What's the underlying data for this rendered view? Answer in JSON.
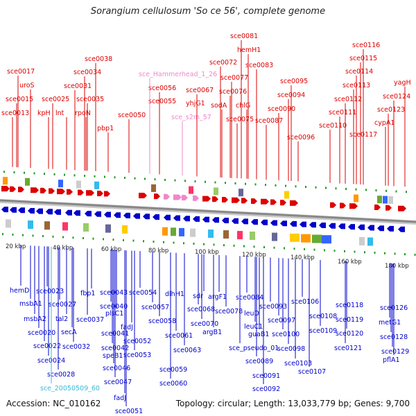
{
  "title": "Sorangium cellulosum 'So ce 56', complete genome",
  "footer": {
    "accession": "Accession: NC_010162",
    "summary": "Topology: circular; Length: 13,033,779 bp; Genes: 9,700"
  },
  "colors": {
    "top_gene": "#dd0000",
    "top_rna": "#ee88cc",
    "bottom_gene": "#0000cc",
    "bottom_rna": "#33bbdd",
    "backbone": "#888888",
    "tick": "#229922"
  },
  "scale_labels": [
    "20 kbp",
    "40 kbp",
    "60 kbp",
    "80 kbp",
    "100 kbp",
    "120 kbp",
    "140 kbp",
    "160 kbp",
    "180 kbp"
  ],
  "top_labels": [
    "sce0013",
    "sce0015",
    "uroS",
    "sce0017",
    "kpH",
    "lnt",
    "sce0025",
    "sce0031",
    "rpoN",
    "sce0034",
    "sce0035",
    "sce0038",
    "pbp1",
    "sce0050",
    "sce0055",
    "sce0056",
    "sce_Hammerhead_1_26",
    "sce_s2m_57",
    "yhjG1",
    "sce0067",
    "sodA",
    "sce0072",
    "sce0075",
    "sce0076",
    "sce0077",
    "hemH1",
    "sce0081",
    "chlG",
    "sce0083",
    "sce0087",
    "sce0090",
    "sce0094",
    "sce0095",
    "sce0096",
    "sce0110",
    "sce0111",
    "sce0112",
    "sce0113",
    "sce0114",
    "sce0115",
    "sce0116",
    "sce0117",
    "cypA1",
    "sce0123",
    "sce0124",
    "yagH"
  ],
  "bottom_labels": [
    "hemD",
    "msbA1",
    "msbA2",
    "sce0020",
    "sce0022",
    "sce0023",
    "sce0024",
    "sce0027",
    "tal2",
    "secA",
    "sce0028",
    "sce0032",
    "sce_20050509_60",
    "fbp1",
    "sce0037",
    "sce0040",
    "sce0041",
    "sce0042",
    "sce0043",
    "plsC1",
    "speB1",
    "fadJ",
    "sce0046",
    "sce0047",
    "fadJ",
    "sce0051",
    "sce0052",
    "sce0053",
    "sce0054",
    "sce0057",
    "sce0058",
    "dlhH1",
    "sce0059",
    "sce0060",
    "sce0061",
    "sce0063",
    "sdr",
    "sce0068",
    "argF1",
    "sce0070",
    "argB1",
    "sce0078",
    "sce0084",
    "leuD",
    "leuC1",
    "sce_pseudo_01",
    "guaB1",
    "sce0089",
    "sce0091",
    "sce0092",
    "sce0093",
    "sce0097",
    "sce0100",
    "sce0098",
    "sce0103",
    "sce0106",
    "sce0107",
    "sce0108",
    "sce0109",
    "sce0118",
    "sce0119",
    "sce0120",
    "sce0121",
    "sce0126",
    "metG1",
    "sce0128",
    "sce0129",
    "pflA1"
  ]
}
